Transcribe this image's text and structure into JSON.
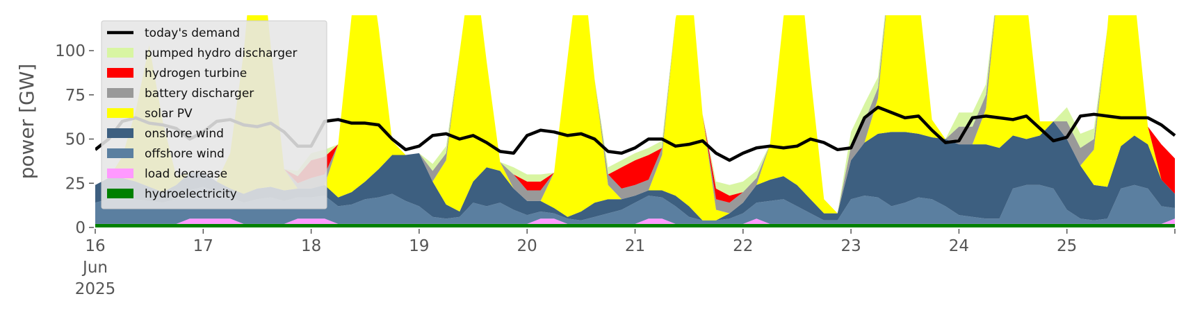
{
  "chart_data": {
    "type": "area",
    "title": "",
    "xlabel": "",
    "ylabel": "power [GW]",
    "ylim": [
      0,
      120
    ],
    "xlim": [
      "2025-06-16",
      "2025-06-26"
    ],
    "yticks": [
      0,
      25,
      50,
      75,
      100
    ],
    "xticks": [
      {
        "date": "2025-06-16",
        "label": "16",
        "sub1": "Jun",
        "sub2": "2025"
      },
      {
        "date": "2025-06-17",
        "label": "17"
      },
      {
        "date": "2025-06-18",
        "label": "18"
      },
      {
        "date": "2025-06-19",
        "label": "19"
      },
      {
        "date": "2025-06-20",
        "label": "20"
      },
      {
        "date": "2025-06-21",
        "label": "21"
      },
      {
        "date": "2025-06-22",
        "label": "22"
      },
      {
        "date": "2025-06-23",
        "label": "23"
      },
      {
        "date": "2025-06-24",
        "label": "24"
      },
      {
        "date": "2025-06-25",
        "label": "25"
      }
    ],
    "grid": false,
    "legend_position": "top-left",
    "x": [
      "2025-06-16 00:00",
      "2025-06-16 03:00",
      "2025-06-16 06:00",
      "2025-06-16 09:00",
      "2025-06-16 12:00",
      "2025-06-16 15:00",
      "2025-06-16 18:00",
      "2025-06-16 21:00",
      "2025-06-17 00:00",
      "2025-06-17 03:00",
      "2025-06-17 06:00",
      "2025-06-17 09:00",
      "2025-06-17 12:00",
      "2025-06-17 15:00",
      "2025-06-17 18:00",
      "2025-06-17 21:00",
      "2025-06-18 00:00",
      "2025-06-18 03:00",
      "2025-06-18 06:00",
      "2025-06-18 09:00",
      "2025-06-18 12:00",
      "2025-06-18 15:00",
      "2025-06-18 18:00",
      "2025-06-18 21:00",
      "2025-06-19 00:00",
      "2025-06-19 03:00",
      "2025-06-19 06:00",
      "2025-06-19 09:00",
      "2025-06-19 12:00",
      "2025-06-19 15:00",
      "2025-06-19 18:00",
      "2025-06-19 21:00",
      "2025-06-20 00:00",
      "2025-06-20 03:00",
      "2025-06-20 06:00",
      "2025-06-20 09:00",
      "2025-06-20 12:00",
      "2025-06-20 15:00",
      "2025-06-20 18:00",
      "2025-06-20 21:00",
      "2025-06-21 00:00",
      "2025-06-21 03:00",
      "2025-06-21 06:00",
      "2025-06-21 09:00",
      "2025-06-21 12:00",
      "2025-06-21 15:00",
      "2025-06-21 18:00",
      "2025-06-21 21:00",
      "2025-06-22 00:00",
      "2025-06-22 03:00",
      "2025-06-22 06:00",
      "2025-06-22 09:00",
      "2025-06-22 12:00",
      "2025-06-22 15:00",
      "2025-06-22 18:00",
      "2025-06-22 21:00",
      "2025-06-23 00:00",
      "2025-06-23 03:00",
      "2025-06-23 06:00",
      "2025-06-23 09:00",
      "2025-06-23 12:00",
      "2025-06-23 15:00",
      "2025-06-23 18:00",
      "2025-06-23 21:00",
      "2025-06-24 00:00",
      "2025-06-24 03:00",
      "2025-06-24 06:00",
      "2025-06-24 09:00",
      "2025-06-24 12:00",
      "2025-06-24 15:00",
      "2025-06-24 18:00",
      "2025-06-24 21:00",
      "2025-06-25 00:00",
      "2025-06-25 03:00",
      "2025-06-25 06:00",
      "2025-06-25 09:00",
      "2025-06-25 12:00",
      "2025-06-25 15:00",
      "2025-06-25 18:00",
      "2025-06-25 21:00",
      "2025-06-26 00:00"
    ],
    "series": [
      {
        "name": "hydroelectricity",
        "color": "#008000",
        "values": [
          2,
          2,
          2,
          2,
          2,
          2,
          2,
          2,
          2,
          2,
          2,
          2,
          2,
          2,
          2,
          2,
          2,
          2,
          2,
          2,
          2,
          2,
          2,
          2,
          2,
          2,
          2,
          2,
          2,
          2,
          2,
          2,
          2,
          2,
          2,
          2,
          2,
          2,
          2,
          2,
          2,
          2,
          2,
          2,
          2,
          2,
          2,
          2,
          2,
          2,
          2,
          2,
          2,
          2,
          2,
          2,
          2,
          2,
          2,
          2,
          2,
          2,
          2,
          2,
          2,
          2,
          2,
          2,
          2,
          2,
          2,
          2,
          2,
          2,
          2,
          2,
          2,
          2,
          2,
          2,
          2
        ]
      },
      {
        "name": "load decrease",
        "color": "#ff99ff",
        "values": [
          0,
          0,
          0,
          0,
          0,
          0,
          0,
          3,
          3,
          3,
          3,
          0,
          0,
          0,
          0,
          3,
          3,
          3,
          0,
          0,
          0,
          0,
          0,
          0,
          0,
          0,
          0,
          0,
          0,
          0,
          0,
          0,
          0,
          3,
          3,
          0,
          0,
          0,
          0,
          0,
          0,
          3,
          3,
          0,
          0,
          0,
          0,
          0,
          0,
          3,
          0,
          0,
          0,
          0,
          0,
          0,
          0,
          0,
          0,
          0,
          0,
          0,
          0,
          0,
          0,
          0,
          0,
          0,
          0,
          0,
          0,
          0,
          0,
          0,
          0,
          0,
          0,
          0,
          0,
          0,
          3
        ]
      },
      {
        "name": "offshore wind",
        "color": "#5b7fa0",
        "values": [
          12,
          14,
          15,
          14,
          13,
          12,
          14,
          16,
          18,
          15,
          12,
          12,
          14,
          15,
          13,
          12,
          12,
          13,
          10,
          11,
          14,
          15,
          17,
          13,
          10,
          4,
          3,
          4,
          12,
          10,
          12,
          8,
          5,
          4,
          3,
          3,
          2,
          4,
          6,
          8,
          12,
          13,
          12,
          10,
          4,
          2,
          2,
          3,
          6,
          9,
          13,
          14,
          10,
          6,
          2,
          2,
          14,
          16,
          15,
          10,
          12,
          15,
          14,
          10,
          5,
          4,
          3,
          3,
          20,
          22,
          22,
          20,
          8,
          3,
          2,
          3,
          20,
          22,
          20,
          10,
          6
        ]
      },
      {
        "name": "onshore wind",
        "color": "#3d5f80",
        "values": [
          10,
          12,
          11,
          10,
          8,
          6,
          8,
          10,
          8,
          6,
          5,
          5,
          6,
          6,
          6,
          5,
          5,
          6,
          5,
          7,
          10,
          16,
          22,
          26,
          30,
          20,
          8,
          3,
          12,
          22,
          18,
          12,
          8,
          6,
          3,
          1,
          5,
          8,
          8,
          6,
          4,
          3,
          4,
          6,
          6,
          0,
          0,
          3,
          6,
          10,
          12,
          13,
          12,
          8,
          4,
          4,
          22,
          30,
          36,
          42,
          40,
          36,
          35,
          38,
          40,
          41,
          42,
          40,
          30,
          26,
          28,
          38,
          40,
          30,
          20,
          18,
          24,
          28,
          25,
          15,
          8
        ]
      },
      {
        "name": "solar PV",
        "color": "#ffff00",
        "values": [
          0,
          0,
          12,
          40,
          80,
          40,
          5,
          0,
          0,
          0,
          20,
          80,
          160,
          80,
          12,
          0,
          0,
          0,
          30,
          100,
          140,
          80,
          8,
          0,
          0,
          0,
          25,
          90,
          130,
          60,
          5,
          0,
          0,
          0,
          20,
          90,
          150,
          70,
          8,
          0,
          0,
          0,
          20,
          100,
          140,
          60,
          6,
          0,
          0,
          0,
          20,
          90,
          140,
          70,
          8,
          0,
          0,
          0,
          20,
          100,
          160,
          80,
          10,
          0,
          0,
          0,
          20,
          100,
          150,
          80,
          8,
          0,
          0,
          0,
          20,
          90,
          160,
          80,
          10,
          0,
          0
        ]
      },
      {
        "name": "battery discharger",
        "color": "#999999",
        "values": [
          0,
          0,
          0,
          0,
          0,
          0,
          0,
          0,
          0,
          0,
          0,
          0,
          0,
          0,
          0,
          3,
          6,
          6,
          0,
          0,
          0,
          0,
          0,
          0,
          0,
          6,
          4,
          0,
          0,
          0,
          0,
          8,
          6,
          6,
          0,
          0,
          0,
          0,
          6,
          6,
          6,
          6,
          4,
          0,
          0,
          0,
          6,
          6,
          6,
          4,
          0,
          0,
          0,
          0,
          0,
          0,
          8,
          12,
          6,
          0,
          0,
          0,
          0,
          0,
          10,
          10,
          8,
          0,
          0,
          0,
          0,
          0,
          10,
          10,
          6,
          0,
          0,
          0,
          0,
          0,
          0
        ]
      },
      {
        "name": "hydrogen turbine",
        "color": "#ff0000",
        "values": [
          0,
          0,
          0,
          0,
          0,
          0,
          0,
          0,
          0,
          0,
          0,
          0,
          0,
          0,
          0,
          4,
          10,
          10,
          0,
          0,
          0,
          0,
          0,
          0,
          0,
          0,
          0,
          0,
          0,
          0,
          0,
          0,
          5,
          5,
          0,
          0,
          0,
          0,
          0,
          12,
          14,
          14,
          0,
          0,
          0,
          0,
          6,
          4,
          0,
          0,
          0,
          0,
          0,
          0,
          0,
          0,
          0,
          0,
          0,
          0,
          0,
          0,
          0,
          0,
          0,
          0,
          0,
          0,
          0,
          0,
          0,
          0,
          0,
          0,
          0,
          0,
          0,
          0,
          0,
          20,
          20
        ]
      },
      {
        "name": "pumped hydro discharger",
        "color": "#d8f5a2",
        "values": [
          0,
          0,
          0,
          0,
          0,
          0,
          0,
          0,
          0,
          0,
          0,
          0,
          0,
          0,
          0,
          3,
          4,
          4,
          0,
          0,
          0,
          0,
          0,
          0,
          0,
          4,
          4,
          0,
          0,
          0,
          0,
          4,
          4,
          4,
          0,
          0,
          0,
          0,
          4,
          4,
          4,
          4,
          4,
          0,
          0,
          0,
          4,
          6,
          6,
          4,
          0,
          0,
          0,
          0,
          0,
          0,
          8,
          10,
          6,
          0,
          0,
          0,
          0,
          0,
          8,
          8,
          6,
          0,
          0,
          0,
          0,
          0,
          8,
          8,
          6,
          0,
          0,
          0,
          0,
          0,
          0
        ]
      }
    ],
    "demand": {
      "name": "today's demand",
      "color": "#000000",
      "values": [
        44,
        50,
        60,
        62,
        59,
        58,
        56,
        50,
        54,
        60,
        61,
        58,
        57,
        59,
        54,
        46,
        46,
        60,
        61,
        59,
        59,
        58,
        50,
        44,
        46,
        52,
        53,
        50,
        52,
        48,
        43,
        42,
        52,
        55,
        54,
        52,
        53,
        50,
        43,
        42,
        45,
        50,
        50,
        46,
        47,
        49,
        42,
        38,
        42,
        45,
        46,
        45,
        46,
        50,
        48,
        44,
        45,
        62,
        68,
        65,
        62,
        63,
        55,
        48,
        49,
        62,
        63,
        62,
        61,
        63,
        56,
        49,
        51,
        63,
        64,
        63,
        62,
        62,
        62,
        58,
        52
      ]
    },
    "legend": [
      {
        "label": "today's demand",
        "color": "#000000",
        "kind": "line"
      },
      {
        "label": "pumped hydro discharger",
        "color": "#d8f5a2",
        "kind": "patch"
      },
      {
        "label": "hydrogen turbine",
        "color": "#ff0000",
        "kind": "patch"
      },
      {
        "label": "battery discharger",
        "color": "#999999",
        "kind": "patch"
      },
      {
        "label": "solar PV",
        "color": "#ffff00",
        "kind": "patch"
      },
      {
        "label": "onshore wind",
        "color": "#3d5f80",
        "kind": "patch"
      },
      {
        "label": "offshore wind",
        "color": "#5b7fa0",
        "kind": "patch"
      },
      {
        "label": "load decrease",
        "color": "#ff99ff",
        "kind": "patch"
      },
      {
        "label": "hydroelectricity",
        "color": "#008000",
        "kind": "patch"
      }
    ]
  }
}
